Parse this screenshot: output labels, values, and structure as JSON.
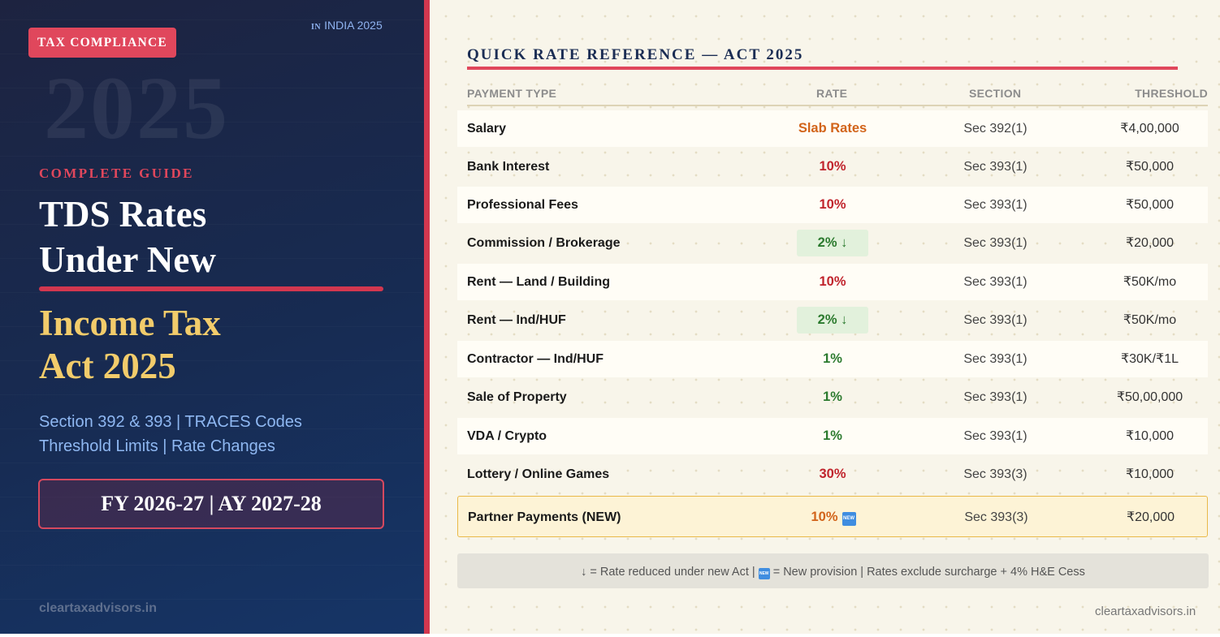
{
  "left": {
    "badge": "TAX COMPLIANCE",
    "country_flag": "IN",
    "country_text": "INDIA 2025",
    "watermark_year": "2025",
    "eyebrow": "COMPLETE GUIDE",
    "title_line1": "TDS Rates",
    "title_line2": "Under New",
    "subtitle_line1": "Income Tax",
    "subtitle_line2": "Act 2025",
    "desc_line1": "Section 392 & 393 | TRACES Codes",
    "desc_line2": "Threshold Limits | Rate Changes",
    "fy_label": "FY 2026-27 | AY 2027-28",
    "website": "cleartaxadvisors.in"
  },
  "right": {
    "section_title": "QUICK RATE REFERENCE — ACT 2025",
    "headers": {
      "type": "PAYMENT TYPE",
      "rate": "RATE",
      "section": "SECTION",
      "threshold": "THRESHOLD"
    },
    "rows": [
      {
        "type": "Salary",
        "rate": "Slab Rates",
        "section": "Sec 392(1)",
        "threshold": "₹4,00,000"
      },
      {
        "type": "Bank Interest",
        "rate": "10%",
        "section": "Sec 393(1)",
        "threshold": "₹50,000"
      },
      {
        "type": "Professional Fees",
        "rate": "10%",
        "section": "Sec 393(1)",
        "threshold": "₹50,000"
      },
      {
        "type": "Commission / Brokerage",
        "rate": "2% ↓",
        "section": "Sec 393(1)",
        "threshold": "₹20,000"
      },
      {
        "type": "Rent — Land / Building",
        "rate": "10%",
        "section": "Sec 393(1)",
        "threshold": "₹50K/mo"
      },
      {
        "type": "Rent — Ind/HUF",
        "rate": "2% ↓",
        "section": "Sec 393(1)",
        "threshold": "₹50K/mo"
      },
      {
        "type": "Contractor — Ind/HUF",
        "rate": "1%",
        "section": "Sec 393(1)",
        "threshold": "₹30K/₹1L"
      },
      {
        "type": "Sale of Property",
        "rate": "1%",
        "section": "Sec 393(1)",
        "threshold": "₹50,00,000"
      },
      {
        "type": "VDA / Crypto",
        "rate": "1%",
        "section": "Sec 393(1)",
        "threshold": "₹10,000"
      },
      {
        "type": "Lottery / Online Games",
        "rate": "30%",
        "section": "Sec 393(3)",
        "threshold": "₹10,000"
      },
      {
        "type": "Partner Payments (NEW)",
        "rate": "10%",
        "section": "Sec 393(3)",
        "threshold": "₹20,000"
      }
    ],
    "new_icon_text": "NEW",
    "footnote_part1": "↓ = Rate reduced under new Act  |",
    "footnote_part2": "= New provision  |  Rates exclude surcharge + 4% H&E Cess",
    "website": "cleartaxadvisors.in"
  },
  "colors": {
    "accent_red": "#e0475c",
    "gold": "#f2cc6b",
    "navy": "#1b2d54",
    "rate_red": "#c0242c",
    "rate_orange": "#d2641a",
    "rate_green": "#2b7a2e"
  }
}
